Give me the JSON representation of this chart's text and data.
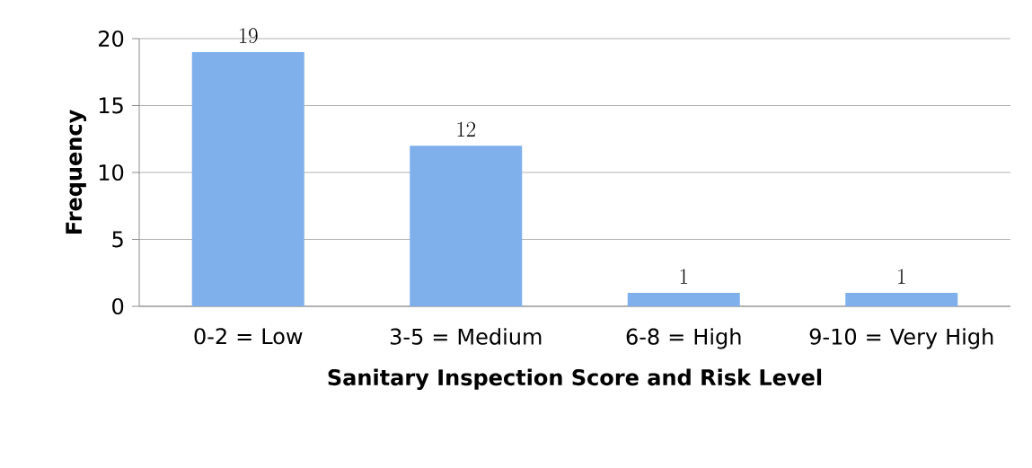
{
  "chart_data": {
    "type": "bar",
    "categories": [
      "0-2 = Low",
      "3-5 = Medium",
      "6-8 = High",
      "9-10 = Very High"
    ],
    "values": [
      19,
      12,
      1,
      1
    ],
    "color": "#7fb0ec",
    "xlabel": "Sanitary Inspection Score and Risk Level",
    "ylabel": "Frequency",
    "ylim": [
      0,
      20
    ],
    "yticks": [
      0,
      5,
      10,
      15,
      20
    ],
    "grid": "y",
    "data_labels": true
  }
}
